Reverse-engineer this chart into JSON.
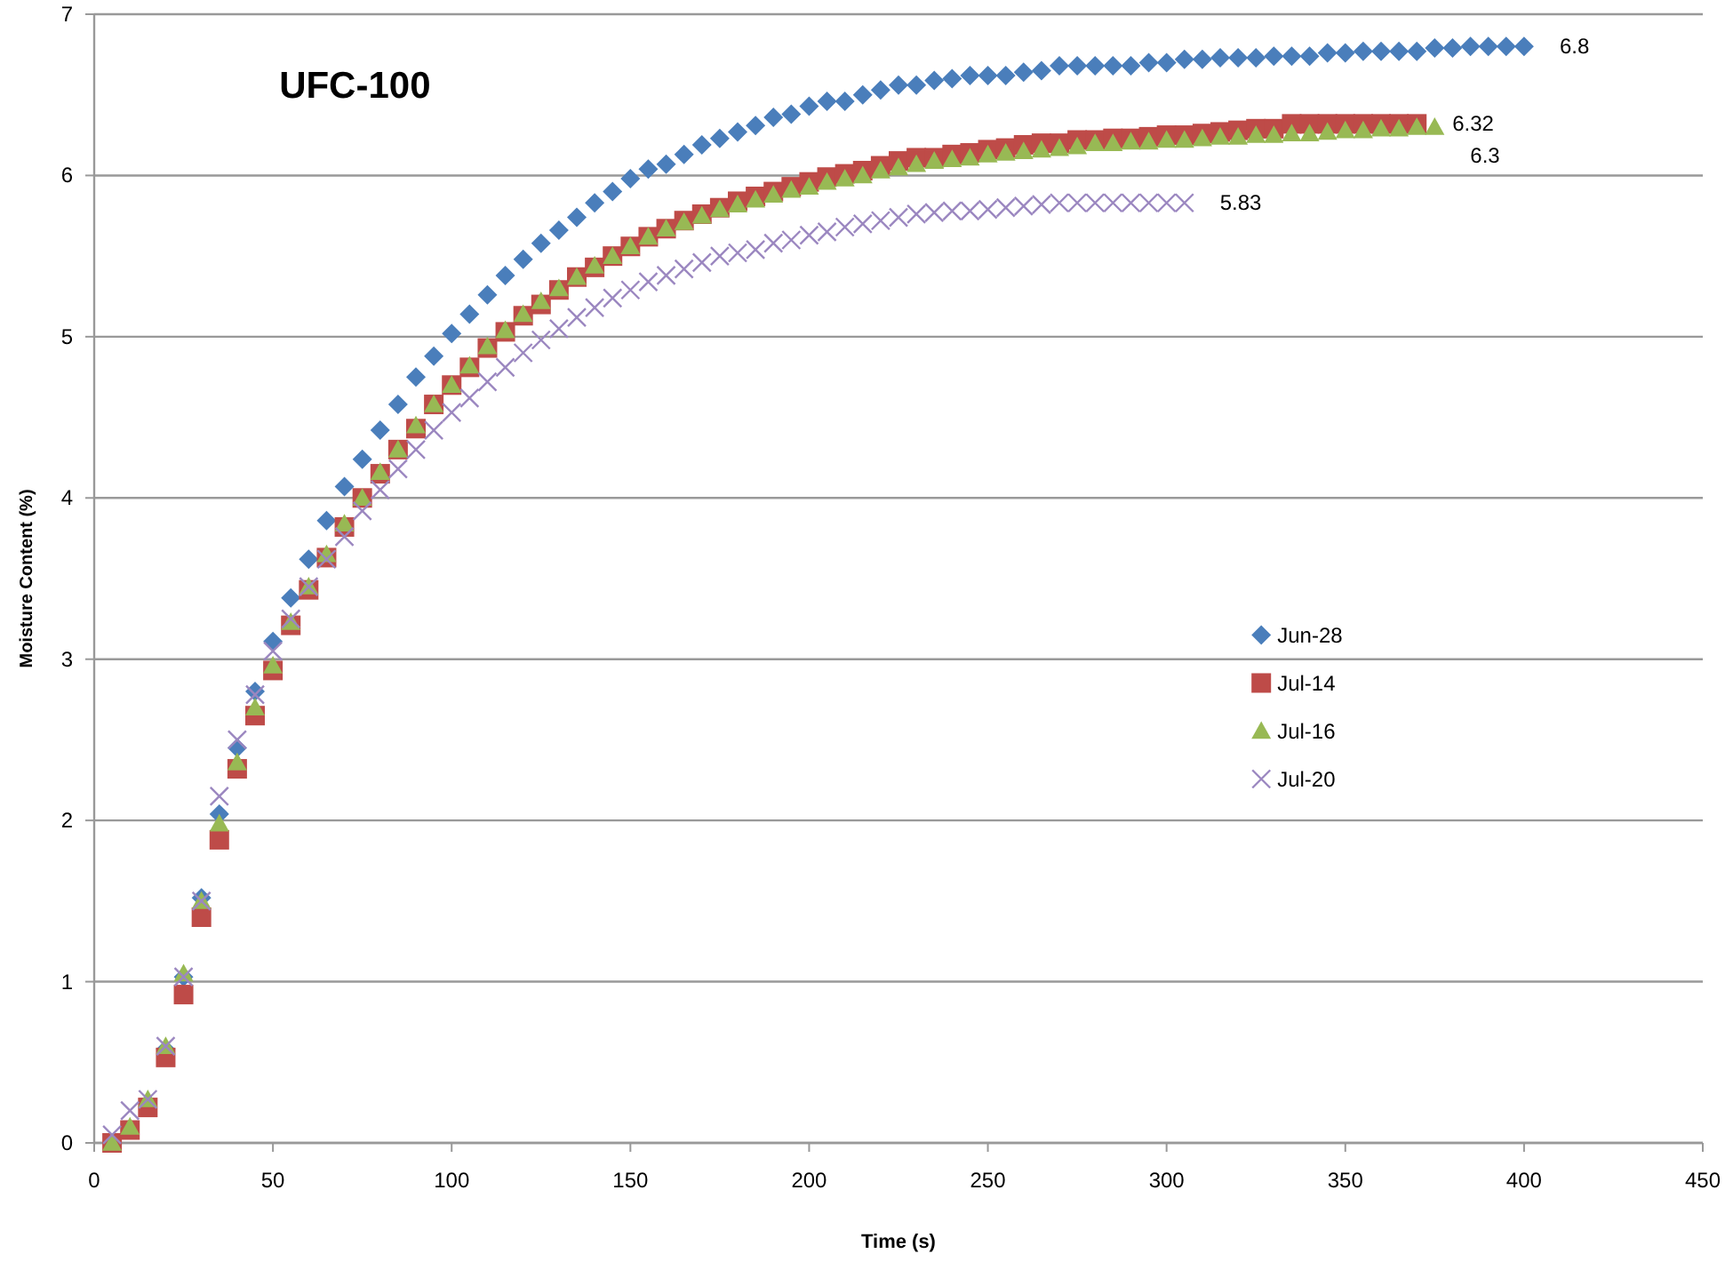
{
  "chart_data": {
    "type": "scatter",
    "title": "UFC-100",
    "xlabel": "Time (s)",
    "ylabel": "Moisture Content  (%)",
    "xlim": [
      0,
      450
    ],
    "xticks": [
      0,
      50,
      100,
      150,
      200,
      250,
      300,
      350,
      400,
      450
    ],
    "ylim": [
      0,
      7
    ],
    "yticks": [
      0,
      1,
      2,
      3,
      4,
      5,
      6,
      7
    ],
    "grid": "y",
    "legend": "right",
    "annotations": [
      {
        "text": "6.8",
        "x": 400,
        "y": 6.8
      },
      {
        "text": "6.32",
        "x": 370,
        "y": 6.32
      },
      {
        "text": "6.3",
        "x": 375,
        "y": 6.3
      },
      {
        "text": "5.83",
        "x": 305,
        "y": 5.83
      }
    ],
    "series": [
      {
        "name": "Jun-28",
        "color": "#4a7ebb",
        "marker": "diamond",
        "x": [
          20,
          25,
          30,
          35,
          40,
          45,
          50,
          55,
          60,
          65,
          70,
          75,
          80,
          85,
          90,
          95,
          100,
          105,
          110,
          115,
          120,
          125,
          130,
          135,
          140,
          145,
          150,
          155,
          160,
          165,
          170,
          175,
          180,
          185,
          190,
          195,
          200,
          205,
          210,
          215,
          220,
          225,
          230,
          235,
          240,
          245,
          250,
          255,
          260,
          265,
          270,
          275,
          280,
          285,
          290,
          295,
          300,
          305,
          310,
          315,
          320,
          325,
          330,
          335,
          340,
          345,
          350,
          355,
          360,
          365,
          370,
          375,
          380,
          385,
          390,
          395,
          400
        ],
        "values": [
          0.58,
          1.03,
          1.52,
          2.04,
          2.45,
          2.8,
          3.11,
          3.38,
          3.62,
          3.86,
          4.07,
          4.24,
          4.42,
          4.58,
          4.75,
          4.88,
          5.02,
          5.14,
          5.26,
          5.38,
          5.48,
          5.58,
          5.66,
          5.74,
          5.83,
          5.9,
          5.98,
          6.04,
          6.07,
          6.13,
          6.19,
          6.23,
          6.27,
          6.31,
          6.36,
          6.38,
          6.43,
          6.46,
          6.46,
          6.5,
          6.53,
          6.56,
          6.56,
          6.59,
          6.6,
          6.62,
          6.62,
          6.62,
          6.64,
          6.65,
          6.68,
          6.68,
          6.68,
          6.68,
          6.68,
          6.7,
          6.7,
          6.72,
          6.72,
          6.73,
          6.73,
          6.73,
          6.74,
          6.74,
          6.74,
          6.76,
          6.76,
          6.77,
          6.77,
          6.77,
          6.77,
          6.79,
          6.79,
          6.8,
          6.8,
          6.8,
          6.8
        ]
      },
      {
        "name": "Jul-14",
        "color": "#be4b48",
        "marker": "square",
        "x": [
          5,
          10,
          15,
          20,
          25,
          30,
          35,
          40,
          45,
          50,
          55,
          60,
          65,
          70,
          75,
          80,
          85,
          90,
          95,
          100,
          105,
          110,
          115,
          120,
          125,
          130,
          135,
          140,
          145,
          150,
          155,
          160,
          165,
          170,
          175,
          180,
          185,
          190,
          195,
          200,
          205,
          210,
          215,
          220,
          225,
          230,
          235,
          240,
          245,
          250,
          255,
          260,
          265,
          270,
          275,
          280,
          285,
          290,
          295,
          300,
          305,
          310,
          315,
          320,
          325,
          330,
          335,
          340,
          345,
          350,
          355,
          360,
          365,
          370
        ],
        "values": [
          0,
          0.08,
          0.22,
          0.53,
          0.92,
          1.4,
          1.88,
          2.32,
          2.65,
          2.93,
          3.21,
          3.43,
          3.63,
          3.82,
          4.0,
          4.15,
          4.3,
          4.43,
          4.58,
          4.7,
          4.81,
          4.93,
          5.03,
          5.13,
          5.2,
          5.29,
          5.37,
          5.43,
          5.5,
          5.56,
          5.62,
          5.67,
          5.72,
          5.76,
          5.8,
          5.84,
          5.87,
          5.9,
          5.93,
          5.96,
          5.99,
          6.01,
          6.03,
          6.06,
          6.09,
          6.11,
          6.11,
          6.13,
          6.14,
          6.16,
          6.17,
          6.19,
          6.2,
          6.2,
          6.22,
          6.22,
          6.23,
          6.23,
          6.24,
          6.25,
          6.25,
          6.26,
          6.27,
          6.28,
          6.29,
          6.29,
          6.32,
          6.32,
          6.32,
          6.32,
          6.32,
          6.32,
          6.32,
          6.32
        ]
      },
      {
        "name": "Jul-16",
        "color": "#98b954",
        "marker": "triangle",
        "x": [
          5,
          10,
          15,
          20,
          25,
          30,
          35,
          40,
          45,
          50,
          55,
          60,
          65,
          70,
          75,
          80,
          85,
          90,
          95,
          100,
          105,
          110,
          115,
          120,
          125,
          130,
          135,
          140,
          145,
          150,
          155,
          160,
          165,
          170,
          175,
          180,
          185,
          190,
          195,
          200,
          205,
          210,
          215,
          220,
          225,
          230,
          235,
          240,
          245,
          250,
          255,
          260,
          265,
          270,
          275,
          280,
          285,
          290,
          295,
          300,
          305,
          310,
          315,
          320,
          325,
          330,
          335,
          340,
          345,
          350,
          355,
          360,
          365,
          370,
          375
        ],
        "values": [
          0,
          0.1,
          0.27,
          0.6,
          1.05,
          1.5,
          1.98,
          2.36,
          2.7,
          2.96,
          3.23,
          3.45,
          3.65,
          3.84,
          4.0,
          4.16,
          4.3,
          4.45,
          4.58,
          4.7,
          4.82,
          4.94,
          5.04,
          5.14,
          5.22,
          5.3,
          5.37,
          5.44,
          5.5,
          5.56,
          5.62,
          5.67,
          5.71,
          5.75,
          5.79,
          5.82,
          5.85,
          5.88,
          5.91,
          5.93,
          5.96,
          5.98,
          6.0,
          6.03,
          6.05,
          6.07,
          6.09,
          6.1,
          6.11,
          6.13,
          6.14,
          6.15,
          6.16,
          6.17,
          6.18,
          6.2,
          6.2,
          6.21,
          6.21,
          6.22,
          6.22,
          6.23,
          6.24,
          6.24,
          6.25,
          6.25,
          6.26,
          6.26,
          6.27,
          6.28,
          6.28,
          6.29,
          6.29,
          6.3,
          6.3
        ]
      },
      {
        "name": "Jul-20",
        "color": "#9b87c0",
        "marker": "cross",
        "x": [
          5,
          10,
          15,
          20,
          25,
          30,
          35,
          40,
          45,
          50,
          55,
          60,
          65,
          70,
          75,
          80,
          85,
          90,
          95,
          100,
          105,
          110,
          115,
          120,
          125,
          130,
          135,
          140,
          145,
          150,
          155,
          160,
          165,
          170,
          175,
          180,
          185,
          190,
          195,
          200,
          205,
          210,
          215,
          220,
          225,
          230,
          235,
          240,
          245,
          250,
          255,
          260,
          265,
          270,
          275,
          280,
          285,
          290,
          295,
          300,
          305
        ],
        "values": [
          0.05,
          0.2,
          0.27,
          0.6,
          1.03,
          1.5,
          2.15,
          2.5,
          2.78,
          3.05,
          3.25,
          3.45,
          3.62,
          3.76,
          3.92,
          4.05,
          4.18,
          4.3,
          4.42,
          4.53,
          4.62,
          4.72,
          4.81,
          4.9,
          4.98,
          5.05,
          5.12,
          5.18,
          5.24,
          5.29,
          5.34,
          5.38,
          5.42,
          5.46,
          5.5,
          5.52,
          5.54,
          5.58,
          5.6,
          5.63,
          5.65,
          5.68,
          5.7,
          5.72,
          5.74,
          5.76,
          5.77,
          5.78,
          5.78,
          5.79,
          5.8,
          5.81,
          5.82,
          5.83,
          5.83,
          5.83,
          5.83,
          5.83,
          5.83,
          5.83,
          5.83
        ]
      }
    ]
  }
}
